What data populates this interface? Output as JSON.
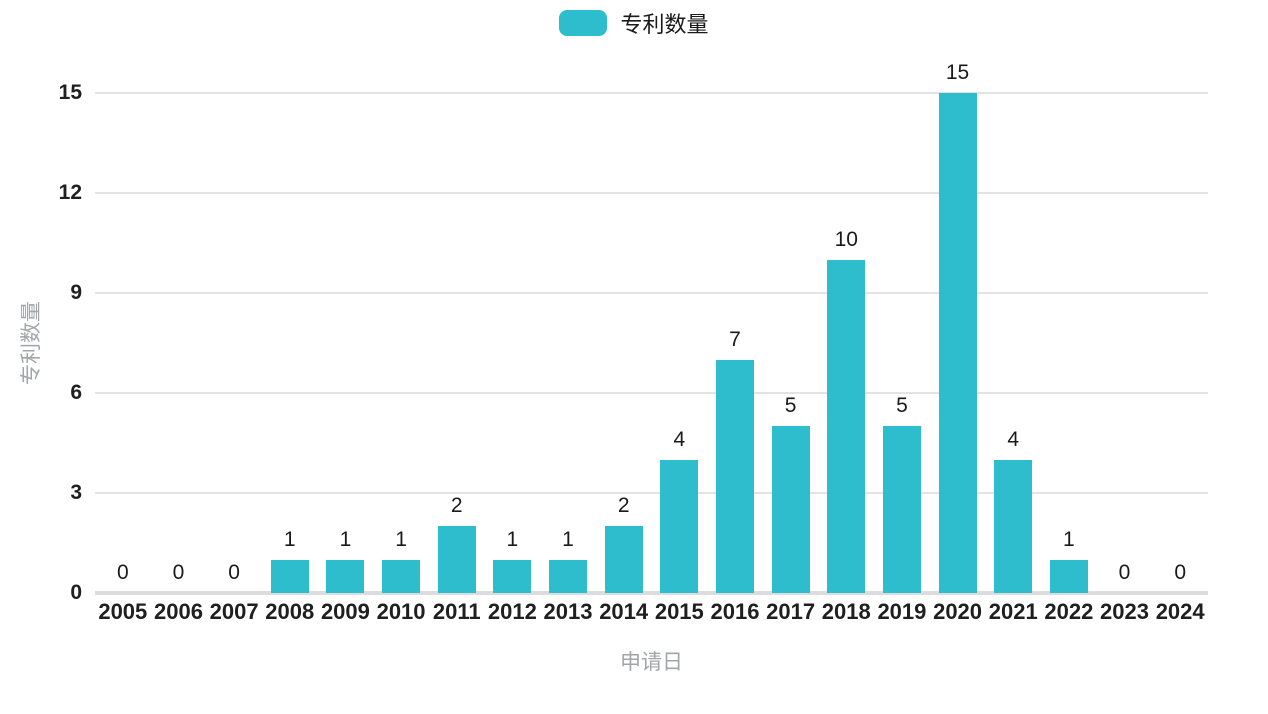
{
  "colors": {
    "bar": "#2EBDCD",
    "grid": "#E3E3E3",
    "axis_line": "#DCDCDC",
    "muted_text": "#A2A5A9",
    "tick_text": "#1F1F1F",
    "label_text": "#1A1A1A"
  },
  "legend": {
    "label": "专利数量"
  },
  "chart_data": {
    "type": "bar",
    "title": "",
    "series_name": "专利数量",
    "categories": [
      "2005",
      "2006",
      "2007",
      "2008",
      "2009",
      "2010",
      "2011",
      "2012",
      "2013",
      "2014",
      "2015",
      "2016",
      "2017",
      "2018",
      "2019",
      "2020",
      "2021",
      "2022",
      "2023",
      "2024"
    ],
    "values": [
      0,
      0,
      0,
      1,
      1,
      1,
      2,
      1,
      1,
      2,
      4,
      7,
      5,
      10,
      5,
      15,
      4,
      1,
      0,
      0
    ],
    "xlabel": "申请日",
    "ylabel": "专利数量",
    "yticks": [
      0,
      3,
      6,
      9,
      12,
      15
    ],
    "ylim": [
      0,
      15
    ],
    "grid": true,
    "data_labels": true,
    "legend_position": "top-center"
  }
}
